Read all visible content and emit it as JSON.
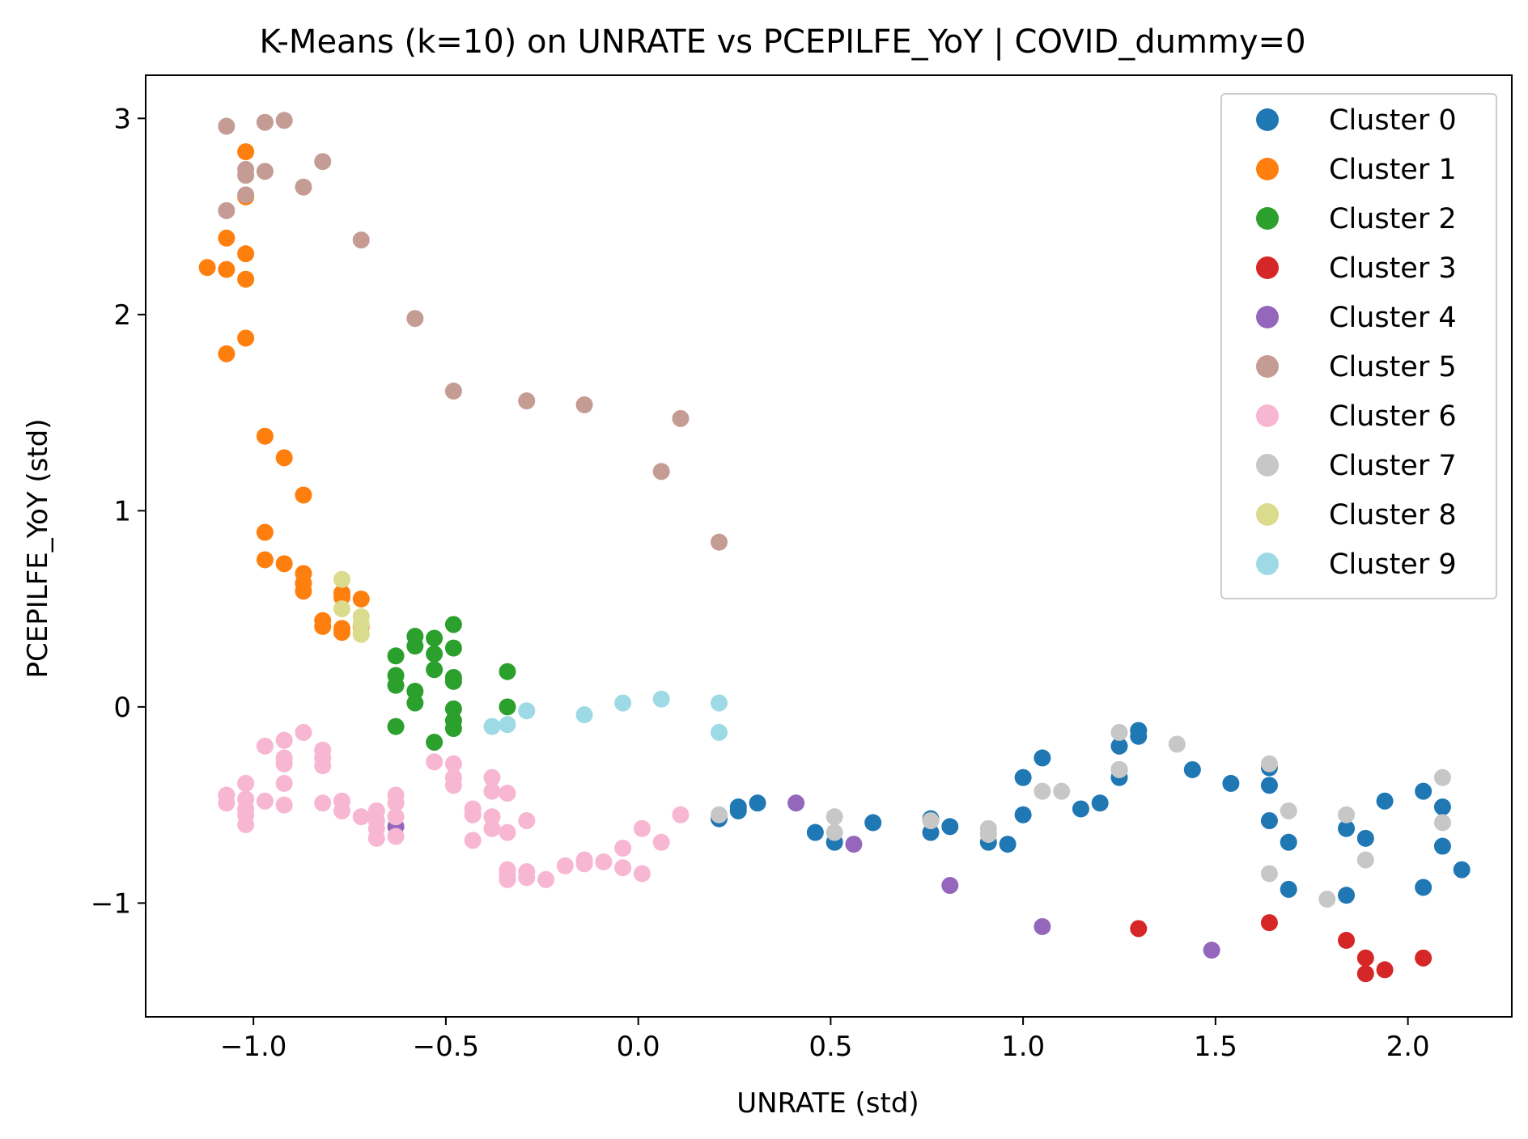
{
  "chart_data": {
    "type": "scatter",
    "title": "K-Means (k=10) on UNRATE vs PCEPILFE_YoY | COVID_dummy=0",
    "xlabel": "UNRATE (std)",
    "ylabel": "PCEPILFE_YoY (std)",
    "xlim": [
      -1.28,
      2.27
    ],
    "ylim": [
      -1.58,
      3.22
    ],
    "xticks": [
      -1.0,
      -0.5,
      0.0,
      0.5,
      1.0,
      1.5,
      2.0
    ],
    "xtick_labels": [
      "−1.0",
      "−0.5",
      "0.0",
      "0.5",
      "1.0",
      "1.5",
      "2.0"
    ],
    "yticks": [
      -1,
      0,
      1,
      2,
      3
    ],
    "ytick_labels": [
      "−1",
      "0",
      "1",
      "2",
      "3"
    ],
    "grid": false,
    "legend_position": "top-right",
    "series": [
      {
        "name": "Cluster 0",
        "color": "#1f77b4",
        "points": [
          [
            0.21,
            -0.57
          ],
          [
            0.26,
            -0.53
          ],
          [
            0.26,
            -0.51
          ],
          [
            0.31,
            -0.49
          ],
          [
            0.46,
            -0.64
          ],
          [
            0.51,
            -0.69
          ],
          [
            0.61,
            -0.59
          ],
          [
            0.76,
            -0.57
          ],
          [
            0.76,
            -0.64
          ],
          [
            0.81,
            -0.61
          ],
          [
            0.91,
            -0.69
          ],
          [
            0.96,
            -0.7
          ],
          [
            1.0,
            -0.36
          ],
          [
            1.0,
            -0.55
          ],
          [
            1.05,
            -0.26
          ],
          [
            1.15,
            -0.52
          ],
          [
            1.2,
            -0.49
          ],
          [
            1.25,
            -0.2
          ],
          [
            1.25,
            -0.32
          ],
          [
            1.25,
            -0.36
          ],
          [
            1.3,
            -0.12
          ],
          [
            1.3,
            -0.15
          ],
          [
            1.44,
            -0.32
          ],
          [
            1.54,
            -0.39
          ],
          [
            1.64,
            -0.31
          ],
          [
            1.64,
            -0.4
          ],
          [
            1.64,
            -0.58
          ],
          [
            1.69,
            -0.69
          ],
          [
            1.69,
            -0.93
          ],
          [
            1.84,
            -0.62
          ],
          [
            1.84,
            -0.96
          ],
          [
            1.89,
            -0.67
          ],
          [
            1.94,
            -0.48
          ],
          [
            2.04,
            -0.43
          ],
          [
            2.04,
            -0.92
          ],
          [
            2.09,
            -0.51
          ],
          [
            2.09,
            -0.71
          ],
          [
            2.14,
            -0.83
          ]
        ]
      },
      {
        "name": "Cluster 1",
        "color": "#ff7f0e",
        "points": [
          [
            -1.02,
            2.83
          ],
          [
            -1.02,
            2.6
          ],
          [
            -1.07,
            2.39
          ],
          [
            -1.12,
            2.24
          ],
          [
            -1.07,
            2.23
          ],
          [
            -1.02,
            2.31
          ],
          [
            -1.02,
            2.18
          ],
          [
            -1.02,
            1.88
          ],
          [
            -1.07,
            1.8
          ],
          [
            -0.97,
            1.38
          ],
          [
            -0.92,
            1.27
          ],
          [
            -0.87,
            1.08
          ],
          [
            -0.97,
            0.89
          ],
          [
            -0.97,
            0.75
          ],
          [
            -0.92,
            0.73
          ],
          [
            -0.87,
            0.68
          ],
          [
            -0.87,
            0.63
          ],
          [
            -0.87,
            0.59
          ],
          [
            -0.77,
            0.58
          ],
          [
            -0.77,
            0.56
          ],
          [
            -0.72,
            0.55
          ],
          [
            -0.82,
            0.44
          ],
          [
            -0.82,
            0.41
          ],
          [
            -0.77,
            0.4
          ],
          [
            -0.77,
            0.38
          ],
          [
            -0.72,
            0.41
          ]
        ]
      },
      {
        "name": "Cluster 2",
        "color": "#2ca02c",
        "points": [
          [
            -0.58,
            0.36
          ],
          [
            -0.53,
            0.35
          ],
          [
            -0.48,
            0.42
          ],
          [
            -0.58,
            0.31
          ],
          [
            -0.48,
            0.3
          ],
          [
            -0.63,
            0.26
          ],
          [
            -0.53,
            0.27
          ],
          [
            -0.53,
            0.19
          ],
          [
            -0.63,
            0.16
          ],
          [
            -0.63,
            0.11
          ],
          [
            -0.48,
            0.15
          ],
          [
            -0.48,
            0.13
          ],
          [
            -0.34,
            0.18
          ],
          [
            -0.58,
            0.08
          ],
          [
            -0.58,
            0.02
          ],
          [
            -0.48,
            -0.01
          ],
          [
            -0.34,
            0.0
          ],
          [
            -0.48,
            -0.07
          ],
          [
            -0.48,
            -0.11
          ],
          [
            -0.63,
            -0.1
          ],
          [
            -0.53,
            -0.18
          ]
        ]
      },
      {
        "name": "Cluster 3",
        "color": "#d62728",
        "points": [
          [
            1.3,
            -1.13
          ],
          [
            1.64,
            -1.1
          ],
          [
            1.84,
            -1.19
          ],
          [
            1.89,
            -1.28
          ],
          [
            1.89,
            -1.36
          ],
          [
            1.94,
            -1.34
          ],
          [
            2.04,
            -1.28
          ]
        ]
      },
      {
        "name": "Cluster 4",
        "color": "#9467bd",
        "points": [
          [
            -0.63,
            -0.61
          ],
          [
            0.41,
            -0.49
          ],
          [
            0.56,
            -0.7
          ],
          [
            0.81,
            -0.91
          ],
          [
            1.05,
            -1.12
          ],
          [
            1.49,
            -1.24
          ]
        ]
      },
      {
        "name": "Cluster 5",
        "color": "#c49c94",
        "points": [
          [
            -1.07,
            2.96
          ],
          [
            -0.97,
            2.98
          ],
          [
            -0.92,
            2.99
          ],
          [
            -1.02,
            2.74
          ],
          [
            -1.02,
            2.71
          ],
          [
            -0.97,
            2.73
          ],
          [
            -0.82,
            2.78
          ],
          [
            -0.87,
            2.65
          ],
          [
            -1.02,
            2.61
          ],
          [
            -1.07,
            2.53
          ],
          [
            -0.72,
            2.38
          ],
          [
            -0.58,
            1.98
          ],
          [
            -0.48,
            1.61
          ],
          [
            -0.29,
            1.56
          ],
          [
            -0.14,
            1.54
          ],
          [
            0.11,
            1.47
          ],
          [
            0.06,
            1.2
          ],
          [
            0.21,
            0.84
          ]
        ]
      },
      {
        "name": "Cluster 6",
        "color": "#f7b6d2",
        "points": [
          [
            -1.07,
            -0.45
          ],
          [
            -1.07,
            -0.49
          ],
          [
            -1.02,
            -0.39
          ],
          [
            -1.02,
            -0.47
          ],
          [
            -1.02,
            -0.52
          ],
          [
            -1.02,
            -0.55
          ],
          [
            -1.02,
            -0.6
          ],
          [
            -0.97,
            -0.2
          ],
          [
            -0.97,
            -0.48
          ],
          [
            -0.92,
            -0.17
          ],
          [
            -0.92,
            -0.26
          ],
          [
            -0.92,
            -0.29
          ],
          [
            -0.92,
            -0.39
          ],
          [
            -0.92,
            -0.5
          ],
          [
            -0.87,
            -0.13
          ],
          [
            -0.82,
            -0.22
          ],
          [
            -0.82,
            -0.26
          ],
          [
            -0.82,
            -0.3
          ],
          [
            -0.82,
            -0.49
          ],
          [
            -0.77,
            -0.48
          ],
          [
            -0.77,
            -0.53
          ],
          [
            -0.72,
            -0.56
          ],
          [
            -0.68,
            -0.53
          ],
          [
            -0.68,
            -0.58
          ],
          [
            -0.68,
            -0.62
          ],
          [
            -0.68,
            -0.67
          ],
          [
            -0.63,
            -0.45
          ],
          [
            -0.63,
            -0.49
          ],
          [
            -0.63,
            -0.56
          ],
          [
            -0.63,
            -0.66
          ],
          [
            -0.53,
            -0.28
          ],
          [
            -0.48,
            -0.29
          ],
          [
            -0.48,
            -0.36
          ],
          [
            -0.48,
            -0.4
          ],
          [
            -0.43,
            -0.52
          ],
          [
            -0.43,
            -0.55
          ],
          [
            -0.43,
            -0.68
          ],
          [
            -0.38,
            -0.36
          ],
          [
            -0.38,
            -0.43
          ],
          [
            -0.38,
            -0.56
          ],
          [
            -0.38,
            -0.62
          ],
          [
            -0.34,
            -0.44
          ],
          [
            -0.34,
            -0.64
          ],
          [
            -0.34,
            -0.83
          ],
          [
            -0.34,
            -0.86
          ],
          [
            -0.34,
            -0.88
          ],
          [
            -0.29,
            -0.58
          ],
          [
            -0.29,
            -0.84
          ],
          [
            -0.29,
            -0.87
          ],
          [
            -0.24,
            -0.88
          ],
          [
            -0.19,
            -0.81
          ],
          [
            -0.14,
            -0.78
          ],
          [
            -0.14,
            -0.8
          ],
          [
            -0.09,
            -0.79
          ],
          [
            -0.04,
            -0.72
          ],
          [
            -0.04,
            -0.82
          ],
          [
            0.01,
            -0.62
          ],
          [
            0.01,
            -0.85
          ],
          [
            0.06,
            -0.69
          ],
          [
            0.11,
            -0.55
          ]
        ]
      },
      {
        "name": "Cluster 7",
        "color": "#c7c7c7",
        "points": [
          [
            0.21,
            -0.55
          ],
          [
            0.51,
            -0.56
          ],
          [
            0.51,
            -0.64
          ],
          [
            0.76,
            -0.58
          ],
          [
            0.91,
            -0.62
          ],
          [
            0.91,
            -0.65
          ],
          [
            1.05,
            -0.43
          ],
          [
            1.1,
            -0.43
          ],
          [
            1.25,
            -0.13
          ],
          [
            1.25,
            -0.32
          ],
          [
            1.4,
            -0.19
          ],
          [
            1.64,
            -0.29
          ],
          [
            1.64,
            -0.85
          ],
          [
            1.69,
            -0.53
          ],
          [
            1.79,
            -0.98
          ],
          [
            1.84,
            -0.55
          ],
          [
            1.89,
            -0.78
          ],
          [
            2.09,
            -0.36
          ],
          [
            2.09,
            -0.59
          ]
        ]
      },
      {
        "name": "Cluster 8",
        "color": "#dbdb8d",
        "points": [
          [
            -0.77,
            0.65
          ],
          [
            -0.77,
            0.5
          ],
          [
            -0.72,
            0.46
          ],
          [
            -0.72,
            0.42
          ],
          [
            -0.72,
            0.37
          ]
        ]
      },
      {
        "name": "Cluster 9",
        "color": "#9edae5",
        "points": [
          [
            -0.38,
            -0.1
          ],
          [
            -0.34,
            -0.09
          ],
          [
            -0.29,
            -0.02
          ],
          [
            -0.14,
            -0.04
          ],
          [
            -0.04,
            0.02
          ],
          [
            0.06,
            0.04
          ],
          [
            0.21,
            0.02
          ],
          [
            0.21,
            -0.13
          ]
        ]
      }
    ]
  }
}
